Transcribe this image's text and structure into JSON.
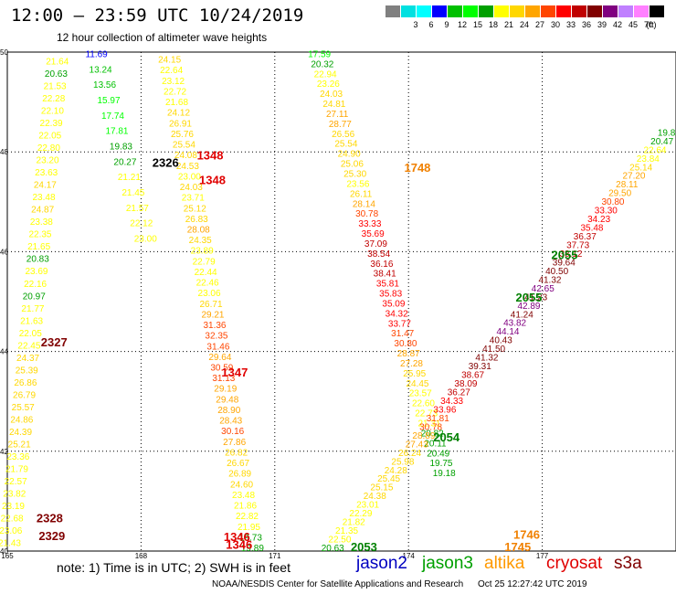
{
  "header": {
    "title": "12:00 – 23:59 UTC 10/24/2019",
    "subtitle": "12 hour collection of altimeter wave heights"
  },
  "colorbar": {
    "unit": "(ft)",
    "bins": [
      {
        "label": "",
        "color": "#808080"
      },
      {
        "label": "3",
        "color": "#00e0e0"
      },
      {
        "label": "6",
        "color": "#00ffff"
      },
      {
        "label": "9",
        "color": "#0000ff"
      },
      {
        "label": "12",
        "color": "#00c000"
      },
      {
        "label": "15",
        "color": "#00ff00"
      },
      {
        "label": "18",
        "color": "#00a000"
      },
      {
        "label": "21",
        "color": "#ffff00"
      },
      {
        "label": "24",
        "color": "#ffd700"
      },
      {
        "label": "27",
        "color": "#ffa500"
      },
      {
        "label": "30",
        "color": "#ff4500"
      },
      {
        "label": "33",
        "color": "#ff0000"
      },
      {
        "label": "36",
        "color": "#c00000"
      },
      {
        "label": "39",
        "color": "#800000"
      },
      {
        "label": "42",
        "color": "#800080"
      },
      {
        "label": "45",
        "color": "#c080ff"
      },
      {
        "label": "70",
        "color": "#ff80ff"
      },
      {
        "label": "",
        "color": "#000000"
      }
    ]
  },
  "chart_data": {
    "type": "scatter",
    "xlim": [
      165,
      180
    ],
    "ylim": [
      40,
      50
    ],
    "xticks": [
      165,
      168,
      171,
      174,
      177
    ],
    "yticks": [
      40,
      42,
      44,
      46,
      48,
      50
    ],
    "grid": true,
    "tracks": [
      {
        "name": "A",
        "p0": [
          166.15,
          50.0
        ],
        "p1": [
          165.05,
          40.1
        ],
        "values": [
          21.42,
          21.64,
          20.63,
          21.53,
          22.28,
          22.1,
          22.39,
          22.05,
          22.8,
          23.2,
          23.63,
          24.17,
          23.48,
          24.87,
          23.38,
          22.35,
          21.65,
          20.83,
          23.69,
          22.16,
          20.97,
          21.77,
          21.63,
          22.05,
          22.45,
          24.37,
          25.39,
          26.86,
          26.79,
          25.57,
          24.86,
          24.39,
          25.21,
          23.36,
          21.79,
          22.57,
          23.82,
          23.19,
          22.68,
          23.06,
          21.43
        ],
        "tag": {
          "text": "2329",
          "color": "#800000",
          "at": [
            166.0,
            40.22
          ]
        }
      },
      {
        "name": "B",
        "p0": [
          167.0,
          49.9
        ],
        "p1": [
          168.1,
          46.2
        ],
        "values": [
          11.69,
          13.24,
          13.56,
          15.97,
          17.74,
          17.81,
          19.83,
          20.27,
          21.21,
          21.45,
          21.57,
          22.12,
          23.0
        ]
      },
      {
        "name": "C",
        "p0": [
          168.6,
          50.0
        ],
        "p1": [
          170.5,
          40.0
        ],
        "values": [
          21.42,
          24.15,
          22.64,
          23.12,
          22.72,
          21.68,
          24.12,
          26.91,
          25.76,
          25.54,
          24.08,
          24.53,
          23.0,
          24.03,
          23.71,
          25.12,
          26.83,
          28.08,
          24.35,
          23.89,
          22.79,
          22.44,
          22.46,
          23.06,
          26.71,
          29.21,
          31.36,
          32.35,
          31.46,
          29.64,
          30.59,
          31.13,
          29.19,
          29.48,
          28.9,
          28.43,
          30.16,
          27.86,
          26.82,
          26.67,
          26.89,
          24.6,
          23.48,
          21.86,
          22.82,
          21.95,
          19.73,
          19.89
        ]
      },
      {
        "name": "D",
        "p0": [
          172.0,
          49.9
        ],
        "p1": [
          174.8,
          41.5
        ],
        "values": [
          17.59,
          20.32,
          22.94,
          23.26,
          24.03,
          24.81,
          27.11,
          28.77,
          26.56,
          25.54,
          24.9,
          25.06,
          25.3,
          23.56,
          26.11,
          28.14,
          30.78,
          33.33,
          35.69,
          37.09,
          38.54,
          36.16,
          38.41,
          35.81,
          35.83,
          35.09,
          34.32,
          33.77,
          31.47,
          30.8,
          28.87,
          27.28,
          25.95,
          24.45,
          23.57,
          22.6,
          22.73,
          21.31,
          20.82,
          20.11,
          20.49,
          19.75,
          19.18
        ]
      },
      {
        "name": "E",
        "p0": [
          172.3,
          40.0
        ],
        "p1": [
          180.0,
          48.5
        ],
        "values": [
          20.63,
          22.5,
          21.35,
          21.82,
          22.29,
          23.01,
          24.38,
          25.15,
          25.45,
          24.28,
          25.98,
          26.24,
          27.43,
          28.89,
          30.78,
          31.81,
          33.96,
          34.33,
          36.27,
          38.09,
          38.67,
          39.31,
          41.32,
          41.5,
          40.43,
          44.14,
          43.82,
          41.24,
          42.89,
          41.23,
          42.65,
          41.32,
          40.5,
          39.64,
          38.12,
          37.73,
          36.37,
          35.48,
          34.23,
          33.3,
          30.8,
          29.5,
          28.11,
          27.2,
          25.14,
          23.84,
          22.64,
          20.47,
          19.88,
          18.9
        ]
      }
    ],
    "labels": [
      {
        "text": "2326",
        "color": "#000000",
        "x": 168.55,
        "y": 47.7
      },
      {
        "text": "1348",
        "color": "#e00000",
        "x": 169.55,
        "y": 47.85
      },
      {
        "text": "1348",
        "color": "#e00000",
        "x": 169.6,
        "y": 47.35
      },
      {
        "text": "2327",
        "color": "#800000",
        "x": 166.05,
        "y": 44.1
      },
      {
        "text": "1347",
        "color": "#e00000",
        "x": 170.1,
        "y": 43.5
      },
      {
        "text": "2328",
        "color": "#800000",
        "x": 165.95,
        "y": 40.58
      },
      {
        "text": "1346",
        "color": "#e00000",
        "x": 170.15,
        "y": 40.2
      },
      {
        "text": "1346",
        "color": "#e00000",
        "x": 170.2,
        "y": 40.05
      },
      {
        "text": "1748",
        "color": "#f08000",
        "x": 174.2,
        "y": 47.6
      },
      {
        "text": "2055",
        "color": "#008000",
        "x": 177.5,
        "y": 45.85
      },
      {
        "text": "2055",
        "color": "#008000",
        "x": 176.7,
        "y": 45.0
      },
      {
        "text": "2054",
        "color": "#008000",
        "x": 174.85,
        "y": 42.2
      },
      {
        "text": "2053",
        "color": "#008000",
        "x": 173.0,
        "y": 40.0
      },
      {
        "text": "1746",
        "color": "#f08000",
        "x": 176.65,
        "y": 40.25
      },
      {
        "text": "1745",
        "color": "#f08000",
        "x": 176.45,
        "y": 40.0
      }
    ]
  },
  "note": "note:  1) Time is in UTC;  2) SWH is in feet",
  "legend": [
    {
      "name": "jason2",
      "color": "#0000c0"
    },
    {
      "name": "jason3",
      "color": "#00a000"
    },
    {
      "name": "altika",
      "color": "#ff9900"
    },
    {
      "name": "cryosat",
      "color": "#e00000"
    },
    {
      "name": "s3a",
      "color": "#800000"
    }
  ],
  "footer": {
    "credit": "NOAA/NESDIS Center for Satellite Applications and Research",
    "date": "Oct 25 12:27:42 UTC 2019"
  }
}
